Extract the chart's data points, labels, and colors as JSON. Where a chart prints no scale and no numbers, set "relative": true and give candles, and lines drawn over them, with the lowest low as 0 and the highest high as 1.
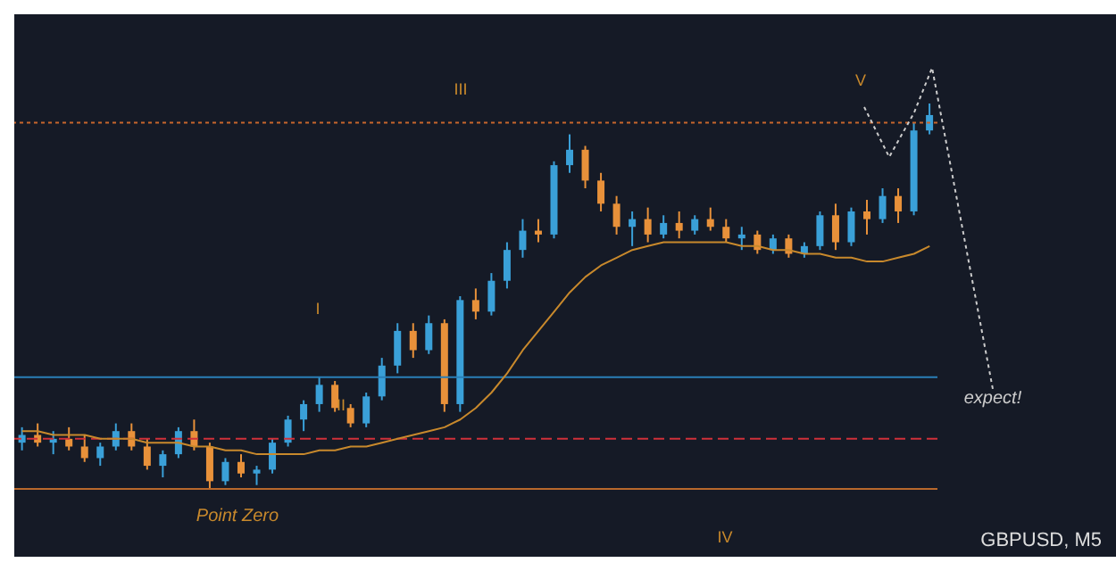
{
  "chart_data": {
    "type": "candlestick",
    "title": "GBPUSD, M5",
    "relative": true,
    "legend": false,
    "grid": false,
    "categories": [
      null,
      null,
      null,
      null,
      null,
      null,
      null,
      null,
      null,
      null,
      null,
      null,
      null,
      null,
      null,
      null,
      null,
      null,
      null,
      null,
      null,
      null,
      null,
      null,
      null,
      null,
      null,
      null,
      null,
      null,
      null,
      null,
      null,
      null,
      null,
      null,
      null,
      null,
      null,
      null,
      null,
      null,
      null,
      null,
      null,
      null,
      null,
      null,
      null,
      null,
      null,
      null,
      null,
      null,
      null,
      null,
      null,
      null,
      null
    ],
    "ohlc": [
      [
        0.12,
        0.16,
        0.1,
        0.14
      ],
      [
        0.14,
        0.17,
        0.11,
        0.12
      ],
      [
        0.12,
        0.15,
        0.09,
        0.13
      ],
      [
        0.13,
        0.16,
        0.1,
        0.11
      ],
      [
        0.11,
        0.14,
        0.07,
        0.08
      ],
      [
        0.08,
        0.12,
        0.06,
        0.11
      ],
      [
        0.11,
        0.17,
        0.1,
        0.15
      ],
      [
        0.15,
        0.17,
        0.1,
        0.11
      ],
      [
        0.11,
        0.13,
        0.05,
        0.06
      ],
      [
        0.06,
        0.1,
        0.03,
        0.09
      ],
      [
        0.09,
        0.16,
        0.08,
        0.15
      ],
      [
        0.15,
        0.18,
        0.1,
        0.11
      ],
      [
        0.11,
        0.12,
        0.0,
        0.02
      ],
      [
        0.02,
        0.08,
        0.01,
        0.07
      ],
      [
        0.07,
        0.09,
        0.03,
        0.04
      ],
      [
        0.04,
        0.06,
        0.01,
        0.05
      ],
      [
        0.05,
        0.13,
        0.04,
        0.12
      ],
      [
        0.12,
        0.19,
        0.11,
        0.18
      ],
      [
        0.18,
        0.23,
        0.15,
        0.22
      ],
      [
        0.22,
        0.29,
        0.2,
        0.27
      ],
      [
        0.27,
        0.28,
        0.2,
        0.21
      ],
      [
        0.21,
        0.22,
        0.16,
        0.17
      ],
      [
        0.17,
        0.25,
        0.16,
        0.24
      ],
      [
        0.24,
        0.34,
        0.23,
        0.32
      ],
      [
        0.32,
        0.43,
        0.3,
        0.41
      ],
      [
        0.41,
        0.43,
        0.34,
        0.36
      ],
      [
        0.36,
        0.45,
        0.35,
        0.43
      ],
      [
        0.43,
        0.44,
        0.2,
        0.22
      ],
      [
        0.22,
        0.5,
        0.2,
        0.49
      ],
      [
        0.49,
        0.52,
        0.44,
        0.46
      ],
      [
        0.46,
        0.56,
        0.45,
        0.54
      ],
      [
        0.54,
        0.64,
        0.52,
        0.62
      ],
      [
        0.62,
        0.7,
        0.6,
        0.67
      ],
      [
        0.67,
        0.7,
        0.64,
        0.66
      ],
      [
        0.66,
        0.85,
        0.65,
        0.84
      ],
      [
        0.84,
        0.92,
        0.82,
        0.88
      ],
      [
        0.88,
        0.89,
        0.78,
        0.8
      ],
      [
        0.8,
        0.82,
        0.72,
        0.74
      ],
      [
        0.74,
        0.76,
        0.66,
        0.68
      ],
      [
        0.68,
        0.72,
        0.63,
        0.7
      ],
      [
        0.7,
        0.73,
        0.64,
        0.66
      ],
      [
        0.66,
        0.71,
        0.65,
        0.69
      ],
      [
        0.69,
        0.72,
        0.65,
        0.67
      ],
      [
        0.67,
        0.71,
        0.66,
        0.7
      ],
      [
        0.7,
        0.73,
        0.67,
        0.68
      ],
      [
        0.68,
        0.7,
        0.64,
        0.65
      ],
      [
        0.65,
        0.68,
        0.62,
        0.66
      ],
      [
        0.66,
        0.67,
        0.61,
        0.62
      ],
      [
        0.62,
        0.66,
        0.61,
        0.65
      ],
      [
        0.65,
        0.66,
        0.6,
        0.61
      ],
      [
        0.61,
        0.64,
        0.6,
        0.63
      ],
      [
        0.63,
        0.72,
        0.62,
        0.71
      ],
      [
        0.71,
        0.74,
        0.62,
        0.64
      ],
      [
        0.64,
        0.73,
        0.63,
        0.72
      ],
      [
        0.72,
        0.75,
        0.66,
        0.7
      ],
      [
        0.7,
        0.78,
        0.69,
        0.76
      ],
      [
        0.76,
        0.78,
        0.69,
        0.72
      ],
      [
        0.72,
        0.95,
        0.71,
        0.93
      ],
      [
        0.93,
        1.0,
        0.92,
        0.97
      ]
    ],
    "series": [
      {
        "type": "line",
        "color": "#c8892c",
        "values": [
          0.15,
          0.15,
          0.14,
          0.14,
          0.14,
          0.13,
          0.13,
          0.13,
          0.12,
          0.12,
          0.12,
          0.11,
          0.11,
          0.1,
          0.1,
          0.09,
          0.09,
          0.09,
          0.09,
          0.1,
          0.1,
          0.11,
          0.11,
          0.12,
          0.13,
          0.14,
          0.15,
          0.16,
          0.18,
          0.21,
          0.25,
          0.3,
          0.36,
          0.41,
          0.46,
          0.51,
          0.55,
          0.58,
          0.6,
          0.62,
          0.63,
          0.64,
          0.64,
          0.64,
          0.64,
          0.64,
          0.63,
          0.63,
          0.62,
          0.62,
          0.61,
          0.61,
          0.6,
          0.6,
          0.59,
          0.59,
          0.6,
          0.61,
          0.63
        ]
      }
    ],
    "ref_lines": [
      {
        "axis": "y",
        "value": 0.95,
        "color": "#c8662c",
        "line_style": "dotted"
      },
      {
        "axis": "y",
        "value": 0.29,
        "color": "#2a7fb8",
        "line_style": "solid"
      },
      {
        "axis": "y",
        "value": 0.13,
        "color": "#d0303a",
        "line_style": "dashed"
      },
      {
        "axis": "y",
        "value": 0.0,
        "color": "#b8682c",
        "line_style": "solid"
      }
    ],
    "annotations": [
      "Point Zero",
      "expect!",
      "I",
      "II",
      "III",
      "IV",
      "V"
    ]
  }
}
